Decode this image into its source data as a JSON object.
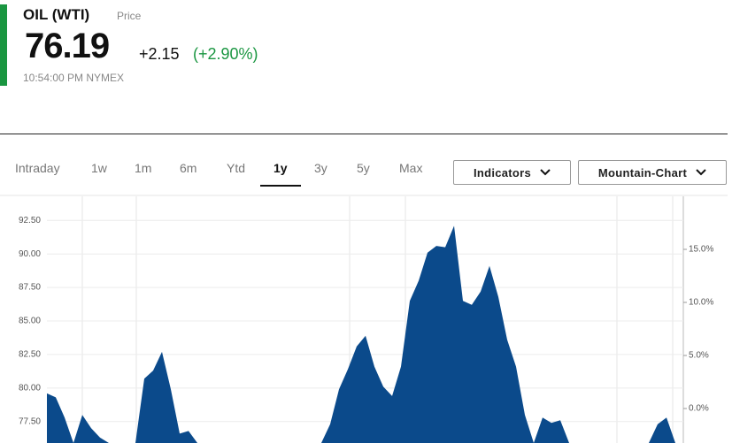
{
  "header": {
    "symbol": "OIL (WTI)",
    "label": "Price",
    "price": "76.19",
    "change": "+2.15",
    "change_pct": "(+2.90%)",
    "time": "10:54:00 PM",
    "exchange": "NYMEX"
  },
  "tabs": [
    "Intraday",
    "1w",
    "1m",
    "6m",
    "Ytd",
    "1y",
    "3y",
    "5y",
    "Max"
  ],
  "buttons": [
    "Indicators",
    "Mountain-Chart"
  ],
  "chart_data": {
    "type": "area",
    "color": "#0b4a8b",
    "grid": true,
    "values": [
      79.6,
      79.3,
      77.8,
      75.9,
      78.0,
      77.0,
      76.3,
      75.9,
      75.9,
      75.9,
      75.9,
      80.7,
      81.3,
      82.7,
      79.9,
      76.6,
      76.8,
      75.9,
      75.9,
      75.9,
      75.9,
      75.9,
      75.9,
      75.9,
      75.9,
      75.9,
      75.9,
      75.9,
      75.9,
      75.9,
      75.9,
      75.9,
      77.3,
      79.9,
      81.4,
      83.1,
      83.9,
      81.6,
      80.1,
      79.4,
      81.6,
      86.5,
      88.0,
      90.1,
      90.6,
      90.5,
      92.1,
      86.5,
      86.2,
      87.2,
      89.1,
      86.8,
      83.6,
      81.6,
      78.0,
      75.9,
      77.8,
      77.4,
      77.6,
      75.9,
      75.9,
      75.9,
      75.9,
      75.9,
      75.9,
      75.9,
      75.9,
      75.9,
      75.9,
      77.3,
      77.8,
      75.9,
      75.9
    ],
    "ylim": [
      75.9,
      94.3
    ],
    "yticks": [
      {
        "value": 77.5,
        "label": "77.50"
      },
      {
        "value": 80,
        "label": "80.00"
      },
      {
        "value": 82.5,
        "label": "82.50"
      },
      {
        "value": 85,
        "label": "85.00"
      },
      {
        "value": 87.5,
        "label": "87.50"
      },
      {
        "value": 90,
        "label": "90.00"
      },
      {
        "value": 92.5,
        "label": "92.50"
      }
    ],
    "y2lim": [
      -3.25,
      20
    ],
    "y2ticks": [
      {
        "value": 0,
        "label": "0.0%"
      },
      {
        "value": 5,
        "label": "5.0%"
      },
      {
        "value": 10,
        "label": "10.0%"
      },
      {
        "value": 15,
        "label": "15.0%"
      }
    ]
  }
}
